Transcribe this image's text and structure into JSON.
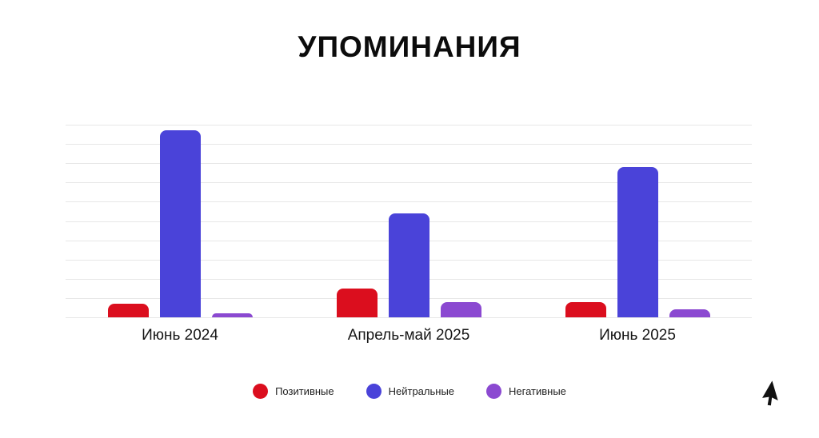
{
  "title": "УПОМИНАНИЯ",
  "chart_data": {
    "type": "bar",
    "title": "УПОМИНАНИЯ",
    "categories": [
      "Июнь 2024",
      "Апрель-май 2025",
      "Июнь 2025"
    ],
    "series": [
      {
        "name": "Позитивные",
        "key": "positive",
        "color": "#db0e1e",
        "values": [
          7,
          15,
          8
        ]
      },
      {
        "name": "Нейтральные",
        "key": "neutral",
        "color": "#4a43d9",
        "values": [
          97,
          54,
          78
        ]
      },
      {
        "name": "Негативные",
        "key": "negative",
        "color": "#8b49d1",
        "values": [
          2,
          8,
          4
        ]
      }
    ],
    "xlabel": "",
    "ylabel": "",
    "ylim": [
      0,
      100
    ],
    "y_tick_labels_visible": false,
    "gridline_count": 11,
    "grid": true,
    "legend_position": "bottom",
    "bar_corner_radius": 8
  },
  "colors": {
    "background": "#ffffff",
    "gridline": "#e7e7e7",
    "title_text": "#0c0c0c",
    "axis_label_text": "#161616",
    "legend_text": "#1e1e1e",
    "cursor": "#111111"
  },
  "icons": {
    "cursor": "arrow-pointer-icon",
    "legend_marker": "legend-dot-icon"
  }
}
